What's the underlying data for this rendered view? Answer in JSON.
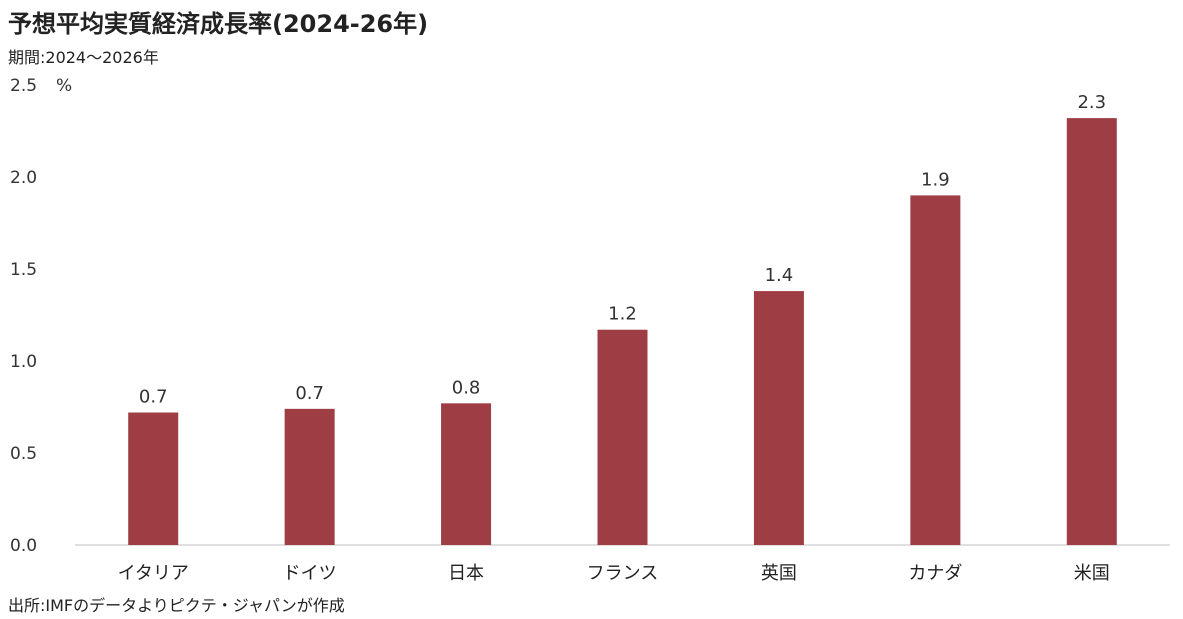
{
  "chart_data": {
    "type": "bar",
    "title": "予想平均実質経済成長率(2024-26年)",
    "subtitle": "期間:2024〜2026年",
    "ylabel": "%",
    "source": "出所:IMFのデータよりピクテ・ジャパンが作成",
    "categories": [
      "イタリア",
      "ドイツ",
      "日本",
      "フランス",
      "英国",
      "カナダ",
      "米国"
    ],
    "values": [
      0.72,
      0.74,
      0.77,
      1.17,
      1.38,
      1.9,
      2.32
    ],
    "data_labels": [
      "0.7",
      "0.7",
      "0.8",
      "1.2",
      "1.4",
      "1.9",
      "2.3"
    ],
    "yticks": [
      "0.0",
      "0.5",
      "1.0",
      "1.5",
      "2.0",
      "2.5"
    ],
    "ylim": [
      0,
      2.5
    ],
    "grid": false,
    "legend": "none",
    "bar_color": "#9e3d44"
  }
}
